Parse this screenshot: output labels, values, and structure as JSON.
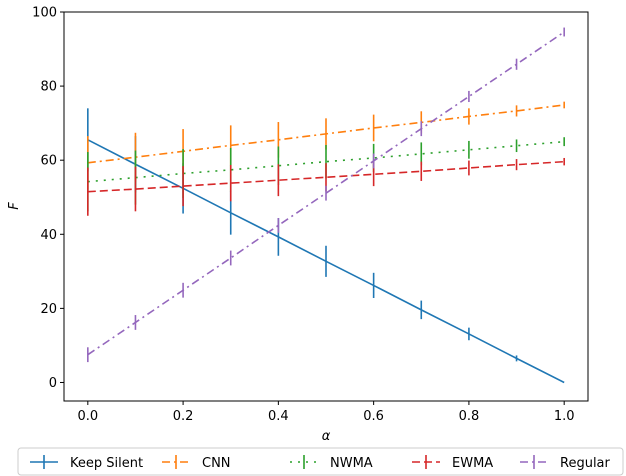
{
  "chart_data": {
    "type": "line",
    "title": "",
    "xlabel": "α",
    "ylabel": "F",
    "xlim": [
      -0.05,
      1.05
    ],
    "ylim": [
      -5,
      100
    ],
    "xticks": [
      0.0,
      0.2,
      0.4,
      0.6,
      0.8,
      1.0
    ],
    "xtick_labels": [
      "0.0",
      "0.2",
      "0.4",
      "0.6",
      "0.8",
      "1.0"
    ],
    "yticks": [
      0,
      20,
      40,
      60,
      80,
      100
    ],
    "ytick_labels": [
      "0",
      "20",
      "40",
      "60",
      "80",
      "100"
    ],
    "grid": false,
    "legend_position": "bottom, outside plot",
    "x": [
      0.0,
      0.1,
      0.2,
      0.3,
      0.4,
      0.5,
      0.6,
      0.7,
      0.8,
      0.9,
      1.0
    ],
    "series": [
      {
        "name": "Keep Silent",
        "color": "#1f77b4",
        "linestyle": "solid",
        "values": [
          65.5,
          58.9,
          52.4,
          45.8,
          39.3,
          32.7,
          26.2,
          19.6,
          13.1,
          6.5,
          0.0
        ],
        "errors": [
          8.5,
          7.6,
          6.8,
          5.9,
          5.1,
          4.2,
          3.4,
          2.5,
          1.7,
          0.8,
          0.0
        ]
      },
      {
        "name": "CNN",
        "color": "#ff7f0e",
        "linestyle": "dashdot",
        "values": [
          59.3,
          60.8,
          62.4,
          64.0,
          65.5,
          67.1,
          68.7,
          70.2,
          71.8,
          73.3,
          74.9
        ],
        "errors": [
          7.2,
          6.6,
          6.0,
          5.4,
          4.8,
          4.2,
          3.6,
          3.0,
          2.2,
          1.5,
          0.9
        ]
      },
      {
        "name": "NWMA",
        "color": "#2ca02c",
        "linestyle": "dotted",
        "values": [
          54.2,
          55.3,
          56.4,
          57.4,
          58.5,
          59.6,
          60.6,
          61.7,
          62.8,
          63.9,
          65.0
        ],
        "errors": [
          8.0,
          7.3,
          6.6,
          5.9,
          5.2,
          4.5,
          3.8,
          3.1,
          2.4,
          1.7,
          1.2
        ]
      },
      {
        "name": "EWMA",
        "color": "#d62728",
        "linestyle": "dashed",
        "values": [
          51.5,
          52.2,
          53.0,
          53.8,
          54.6,
          55.4,
          56.2,
          57.0,
          57.9,
          58.8,
          59.6
        ],
        "errors": [
          6.5,
          6.0,
          5.4,
          4.9,
          4.3,
          3.8,
          3.2,
          2.6,
          2.0,
          1.5,
          1.0
        ]
      },
      {
        "name": "Regular",
        "color": "#9467bd",
        "linestyle": "dashdot",
        "values": [
          7.5,
          16.2,
          24.9,
          33.6,
          42.4,
          51.1,
          59.8,
          68.5,
          77.2,
          85.9,
          94.6
        ],
        "errors": [
          2.0,
          2.0,
          2.0,
          2.0,
          2.0,
          2.0,
          2.0,
          2.0,
          1.5,
          1.5,
          1.2
        ]
      }
    ]
  }
}
